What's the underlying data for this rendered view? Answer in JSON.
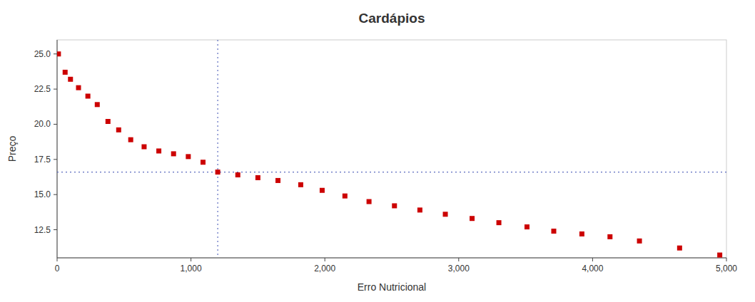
{
  "chart_data": {
    "type": "scatter",
    "title": "Cardápios",
    "xlabel": "Erro Nutricional",
    "ylabel": "Preço",
    "x": [
      10,
      60,
      100,
      160,
      230,
      300,
      380,
      460,
      550,
      650,
      760,
      870,
      980,
      1090,
      1200,
      1350,
      1500,
      1650,
      1820,
      1980,
      2150,
      2330,
      2520,
      2710,
      2900,
      3100,
      3300,
      3510,
      3710,
      3920,
      4130,
      4350,
      4650,
      4950
    ],
    "values": [
      25.0,
      23.7,
      23.2,
      22.6,
      22.0,
      21.4,
      20.2,
      19.6,
      18.9,
      18.4,
      18.1,
      17.9,
      17.7,
      17.3,
      16.6,
      16.4,
      16.2,
      16.0,
      15.7,
      15.3,
      14.9,
      14.5,
      14.2,
      13.9,
      13.6,
      13.3,
      13.0,
      12.7,
      12.4,
      12.2,
      12.0,
      11.7,
      11.2,
      10.7
    ],
    "color": "#cc0000",
    "marker": "square",
    "crosshair_x": 1200,
    "crosshair_y": 16.6,
    "xlim": [
      0,
      5000
    ],
    "ylim": [
      10.5,
      26.0
    ],
    "xticks": [
      0,
      {
        "value": 1000,
        "label": "1,000"
      },
      {
        "value": 2000,
        "label": "2,000"
      },
      {
        "value": 3000,
        "label": "3,000"
      },
      {
        "value": 4000,
        "label": "4,000"
      },
      {
        "value": 5000,
        "label": "5,000"
      }
    ],
    "yticks": [
      12.5,
      {
        "value": 15.0,
        "label": "15.0"
      },
      17.5,
      {
        "value": 20.0,
        "label": "20.0"
      },
      22.5,
      {
        "value": 25.0,
        "label": "25.0"
      }
    ],
    "grid": false
  }
}
